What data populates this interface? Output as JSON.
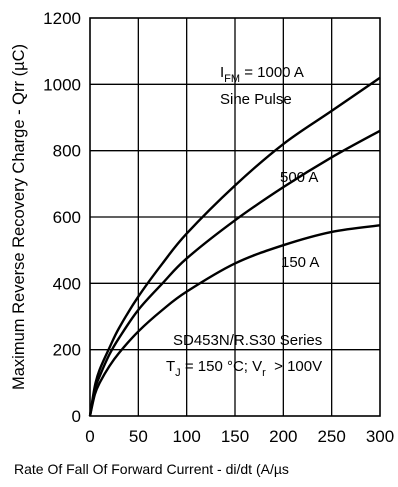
{
  "chart_data": {
    "type": "line",
    "xlabel": "Rate Of Fall Of Forward Current - di/dt (A/µs",
    "ylabel": "Maximum Reverse Recovery Charge - Qrr (µC)",
    "xlim": [
      0,
      300
    ],
    "ylim": [
      0,
      1200
    ],
    "xticks": [
      0,
      50,
      100,
      150,
      200,
      250,
      300
    ],
    "yticks": [
      0,
      200,
      400,
      600,
      800,
      1000,
      1200
    ],
    "grid": true,
    "series": [
      {
        "name": "1000 A",
        "x": [
          0,
          5,
          10,
          20,
          30,
          50,
          75,
          100,
          150,
          200,
          250,
          300
        ],
        "y": [
          0,
          90,
          140,
          205,
          265,
          360,
          460,
          550,
          695,
          820,
          920,
          1020
        ]
      },
      {
        "name": "500 A",
        "x": [
          0,
          5,
          10,
          20,
          30,
          50,
          75,
          100,
          150,
          200,
          250,
          300
        ],
        "y": [
          0,
          80,
          120,
          185,
          235,
          320,
          400,
          475,
          590,
          690,
          780,
          860
        ]
      },
      {
        "name": "150 A",
        "x": [
          0,
          5,
          10,
          20,
          30,
          50,
          75,
          100,
          150,
          200,
          250,
          300
        ],
        "y": [
          0,
          65,
          100,
          150,
          190,
          255,
          320,
          375,
          460,
          515,
          555,
          575
        ]
      }
    ],
    "annotations": {
      "ifm_main": "I",
      "ifm_sub": "FM",
      "ifm_rest": " = 1000 A",
      "pulse": "Sine Pulse",
      "label_500": "500 A",
      "label_150": "150 A",
      "series_name": "SD453N/R.S30 Series",
      "cond_t": "T",
      "cond_t_sub": "J",
      "cond_mid": " = 150 °C; V",
      "cond_v_sub": "r",
      "cond_end": "  > 100V"
    }
  }
}
